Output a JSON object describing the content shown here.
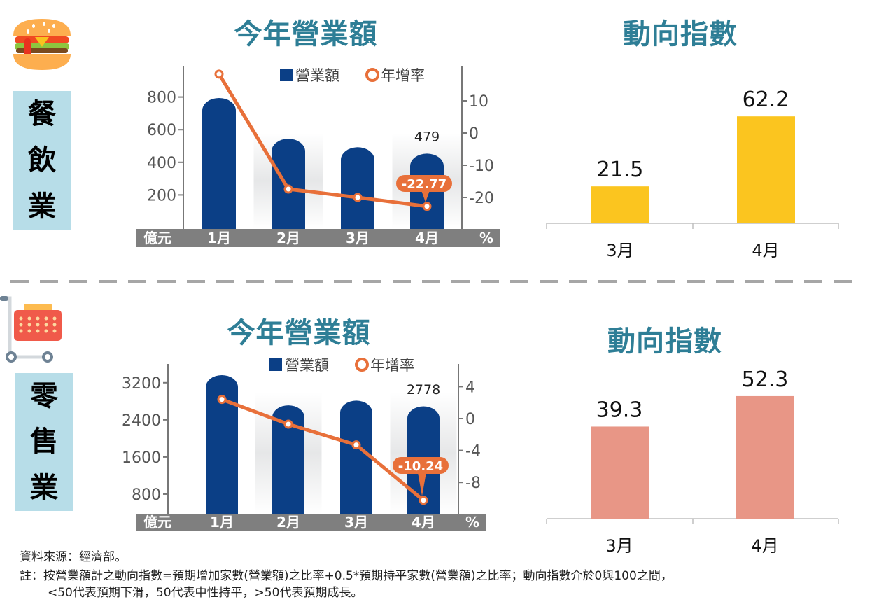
{
  "sections": [
    {
      "label_chars": [
        "餐",
        "飲",
        "業"
      ],
      "icon": "hamburger-icon",
      "sales_title": "今年營業額",
      "index_title": "動向指數"
    },
    {
      "label_chars": [
        "零",
        "售",
        "業"
      ],
      "icon": "shopping-cart-icon",
      "sales_title": "今年營業額",
      "index_title": "動向指數"
    }
  ],
  "footer": {
    "source": "資料來源：經濟部。",
    "note_line1": "註：按營業額計之動向指數=預期增加家數(營業額)之比率+0.5*預期持平家數(營業額)之比率；動向指數介於0與100之間，",
    "note_line2": "<50代表預期下滑，50代表中性持平，>50代表預期成長。"
  },
  "colors": {
    "title": "#2E7E96",
    "bar_blue": "#0B3F86",
    "line_orange": "#E8703A",
    "index_yellow": "#FBC51F",
    "index_salmon": "#E89686",
    "label_box": "#B7DDE8"
  },
  "chart_data": [
    {
      "type": "bar+line",
      "title": "今年營業額",
      "categories": [
        "1月",
        "2月",
        "3月",
        "4月"
      ],
      "xlabel_left": "億元",
      "xlabel_right": "%",
      "series": [
        {
          "name": "營業額",
          "axis": "left",
          "type": "bar",
          "values": [
            820,
            570,
            518,
            479
          ]
        },
        {
          "name": "年增率",
          "axis": "right",
          "type": "line",
          "values": [
            18.3,
            -17.4,
            -20.0,
            -22.77
          ]
        }
      ],
      "left_ticks": [
        200,
        400,
        600,
        800
      ],
      "left_ylim": [
        0,
        1000
      ],
      "right_ticks": [
        10,
        0,
        -10,
        -20
      ],
      "right_ylim": [
        -30,
        20
      ],
      "value_label": "479",
      "callout": "-22.77"
    },
    {
      "type": "bar",
      "title": "動向指數",
      "categories": [
        "3月",
        "4月"
      ],
      "values": [
        21.5,
        62.2
      ],
      "labels": [
        "21.5",
        "62.2"
      ],
      "ylim": [
        0,
        81
      ]
    },
    {
      "type": "bar+line",
      "title": "今年營業額",
      "categories": [
        "1月",
        "2月",
        "3月",
        "4月"
      ],
      "xlabel_left": "億元",
      "xlabel_right": "%",
      "series": [
        {
          "name": "營業額",
          "axis": "left",
          "type": "bar",
          "values": [
            3450,
            2800,
            2900,
            2778
          ]
        },
        {
          "name": "年增率",
          "axis": "right",
          "type": "line",
          "values": [
            2.4,
            -0.7,
            -3.3,
            -10.24
          ]
        }
      ],
      "left_ticks": [
        800,
        1600,
        2400,
        3200
      ],
      "left_ylim": [
        0,
        3800
      ],
      "right_ticks": [
        4,
        0,
        -4,
        -8
      ],
      "right_ylim": [
        -12,
        8
      ],
      "value_label": "2778",
      "callout": "-10.24"
    },
    {
      "type": "bar",
      "title": "動向指數",
      "categories": [
        "3月",
        "4月"
      ],
      "values": [
        39.3,
        52.3
      ],
      "labels": [
        "39.3",
        "52.3"
      ],
      "ylim": [
        0,
        72
      ]
    }
  ]
}
